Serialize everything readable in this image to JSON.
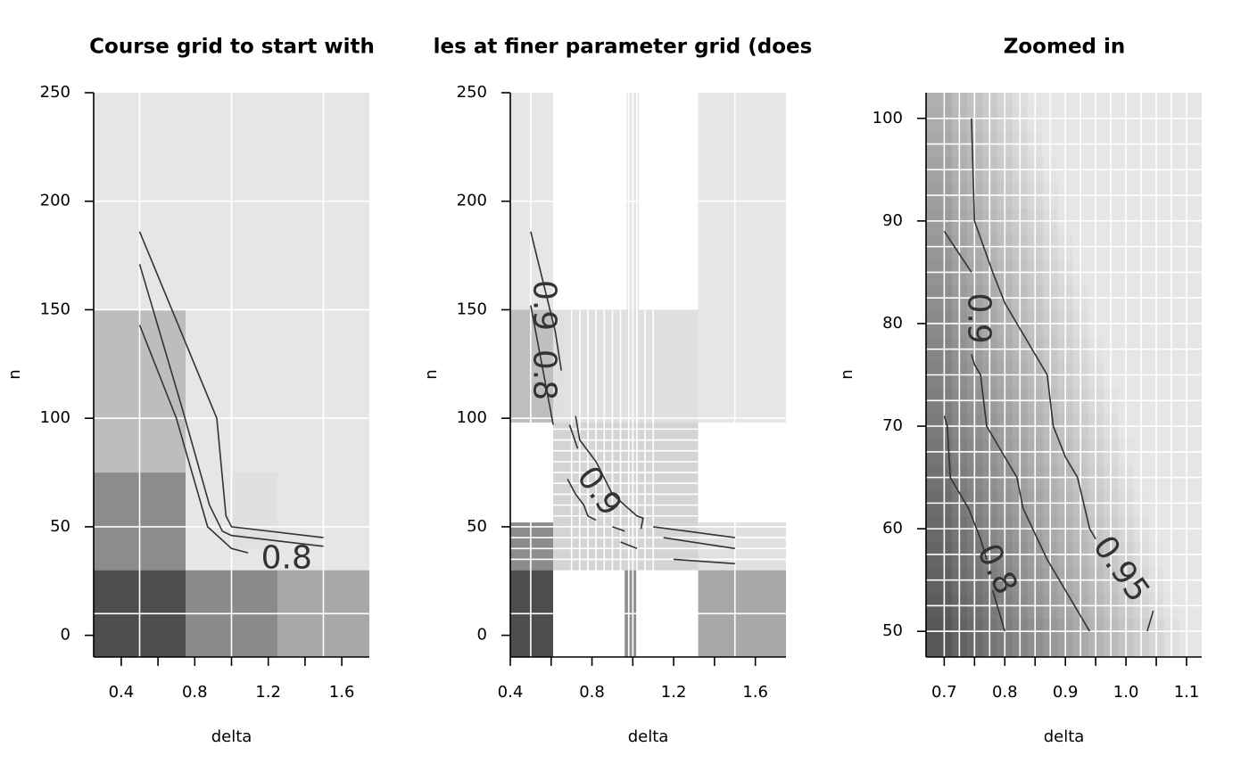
{
  "chart_data": [
    {
      "type": "heatmap",
      "title": "Course grid to start with",
      "xlabel": "delta",
      "ylabel": "n",
      "xlim": [
        0.25,
        1.75
      ],
      "ylim": [
        -10,
        250
      ],
      "xticks": [
        0.4,
        0.8,
        1.2,
        1.6
      ],
      "xticks_minor": [
        0.6,
        1.0,
        1.4
      ],
      "yticks": [
        0,
        50,
        100,
        150,
        200,
        250
      ],
      "grid_x": [
        0.5,
        1.0,
        1.5
      ],
      "grid_y": [
        10,
        50,
        100,
        150,
        200
      ],
      "cells": [
        {
          "x": [
            0.25,
            0.75
          ],
          "y": [
            -10,
            30
          ],
          "v": 0.3
        },
        {
          "x": [
            0.75,
            1.25
          ],
          "y": [
            -10,
            30
          ],
          "v": 0.54
        },
        {
          "x": [
            1.25,
            1.75
          ],
          "y": [
            -10,
            30
          ],
          "v": 0.66
        },
        {
          "x": [
            0.25,
            0.75
          ],
          "y": [
            30,
            75
          ],
          "v": 0.55
        },
        {
          "x": [
            0.75,
            1.75
          ],
          "y": [
            30,
            75
          ],
          "v": 0.9
        },
        {
          "x": [
            0.25,
            0.75
          ],
          "y": [
            75,
            150
          ],
          "v": 0.74
        },
        {
          "x": [
            0.75,
            1.75
          ],
          "y": [
            75,
            150
          ],
          "v": 0.9
        },
        {
          "x": [
            0.25,
            1.75
          ],
          "y": [
            150,
            250
          ],
          "v": 0.9
        },
        {
          "x": [
            1.0,
            1.25
          ],
          "y": [
            40,
            75
          ],
          "v": 0.88
        }
      ],
      "contours": [
        {
          "label": "0.8",
          "points": [
            [
              0.5,
              143
            ],
            [
              0.7,
              100
            ],
            [
              0.87,
              50
            ],
            [
              1.0,
              40
            ],
            [
              1.09,
              38
            ]
          ]
        },
        {
          "label": "",
          "points": [
            [
              0.5,
              171
            ],
            [
              0.73,
              105
            ],
            [
              0.88,
              60
            ],
            [
              0.95,
              48
            ],
            [
              1.0,
              46
            ],
            [
              1.5,
              41
            ]
          ]
        },
        {
          "label": "",
          "points": [
            [
              0.5,
              186
            ],
            [
              0.92,
              100
            ],
            [
              0.97,
              55
            ],
            [
              1.0,
              50
            ],
            [
              1.5,
              45
            ]
          ]
        }
      ],
      "contour_labels": [
        {
          "text": "0.8",
          "x": 1.3,
          "y": 35,
          "angle": 0
        }
      ]
    },
    {
      "type": "heatmap",
      "title": "les at finer parameter grid (does",
      "xlabel": "delta",
      "ylabel": "n",
      "xlim": [
        0.4,
        1.75
      ],
      "ylim": [
        -10,
        250
      ],
      "xticks": [
        0.4,
        0.8,
        1.2,
        1.6
      ],
      "xticks_minor": [
        0.6,
        1.0,
        1.4
      ],
      "yticks": [
        0,
        50,
        100,
        150,
        200,
        250
      ],
      "grid_x": [
        0.5,
        0.7,
        0.74,
        0.78,
        0.82,
        0.86,
        0.9,
        0.94,
        0.98,
        1.0,
        1.02,
        1.06,
        1.1,
        1.5
      ],
      "grid_y": [
        10,
        35,
        40,
        45,
        50,
        55,
        60,
        65,
        70,
        75,
        80,
        85,
        90,
        95,
        100,
        200
      ],
      "cells": [
        {
          "x": [
            0.4,
            0.61
          ],
          "y": [
            -10,
            30
          ],
          "v": 0.3
        },
        {
          "x": [
            0.4,
            0.61
          ],
          "y": [
            30,
            52
          ],
          "v": 0.55
        },
        {
          "x": [
            0.4,
            0.61
          ],
          "y": [
            52,
            98
          ],
          "v": 1.0
        },
        {
          "x": [
            0.4,
            0.61
          ],
          "y": [
            98,
            150
          ],
          "v": 0.75
        },
        {
          "x": [
            0.4,
            0.61
          ],
          "y": [
            150,
            250
          ],
          "v": 0.9
        },
        {
          "x": [
            0.61,
            1.32
          ],
          "y": [
            -10,
            30
          ],
          "v": 1.0
        },
        {
          "x": [
            0.96,
            1.02
          ],
          "y": [
            -10,
            30
          ],
          "v": 0.56
        },
        {
          "x": [
            0.61,
            1.32
          ],
          "y": [
            30,
            98
          ],
          "v": 0.83
        },
        {
          "x": [
            0.61,
            1.32
          ],
          "y": [
            98,
            150
          ],
          "v": 0.88
        },
        {
          "x": [
            0.61,
            1.32
          ],
          "y": [
            150,
            250
          ],
          "v": 1.0
        },
        {
          "x": [
            1.03,
            1.32
          ],
          "y": [
            150,
            250
          ],
          "v": 1.0
        },
        {
          "x": [
            0.97,
            1.03
          ],
          "y": [
            150,
            250
          ],
          "v": 0.9
        },
        {
          "x": [
            1.32,
            1.75
          ],
          "y": [
            -10,
            30
          ],
          "v": 0.66
        },
        {
          "x": [
            1.32,
            1.75
          ],
          "y": [
            30,
            52
          ],
          "v": 0.88
        },
        {
          "x": [
            1.32,
            1.75
          ],
          "y": [
            52,
            98
          ],
          "v": 1.0
        },
        {
          "x": [
            1.32,
            1.75
          ],
          "y": [
            98,
            250
          ],
          "v": 0.9
        }
      ],
      "contours": [
        {
          "label": "0.8",
          "points": [
            [
              0.5,
              186
            ],
            [
              0.62,
              140
            ],
            [
              0.65,
              122
            ]
          ]
        },
        {
          "label": "",
          "points": [
            [
              0.5,
              152
            ],
            [
              0.61,
              97
            ]
          ]
        },
        {
          "label": "",
          "points": [
            [
              0.69,
              97
            ],
            [
              0.73,
              86
            ]
          ]
        },
        {
          "label": "",
          "points": [
            [
              0.72,
              101
            ],
            [
              0.74,
              90
            ],
            [
              0.82,
              80
            ],
            [
              0.9,
              65
            ],
            [
              1.02,
              55
            ],
            [
              1.05,
              54
            ],
            [
              1.04,
              49
            ]
          ]
        },
        {
          "label": "",
          "points": [
            [
              0.68,
              72
            ],
            [
              0.72,
              65
            ],
            [
              0.76,
              60
            ],
            [
              0.78,
              55
            ],
            [
              0.82,
              53
            ]
          ]
        },
        {
          "label": "",
          "points": [
            [
              0.9,
              50
            ],
            [
              0.96,
              48
            ]
          ]
        },
        {
          "label": "",
          "points": [
            [
              0.94,
              43
            ],
            [
              1.02,
              40
            ]
          ]
        },
        {
          "label": "",
          "points": [
            [
              1.15,
              45
            ],
            [
              1.5,
              40
            ]
          ]
        },
        {
          "label": "",
          "points": [
            [
              1.1,
              50
            ],
            [
              1.5,
              45
            ]
          ]
        },
        {
          "label": "",
          "points": [
            [
              1.2,
              35
            ],
            [
              1.5,
              33
            ]
          ]
        }
      ],
      "contour_labels": [
        {
          "text": "0.9",
          "x": 0.56,
          "y": 152,
          "angle": 90
        },
        {
          "text": "0.8",
          "x": 0.56,
          "y": 120,
          "angle": 90
        },
        {
          "text": "0.9",
          "x": 0.83,
          "y": 66,
          "angle": 55
        }
      ]
    },
    {
      "type": "heatmap",
      "title": "Zoomed in",
      "xlabel": "delta",
      "ylabel": "n",
      "xlim": [
        0.67,
        1.125
      ],
      "ylim": [
        47.5,
        102.5
      ],
      "xticks": [
        0.7,
        0.8,
        0.9,
        1.0,
        1.1
      ],
      "xticks_minor": [
        0.75,
        0.85,
        0.95,
        1.05
      ],
      "yticks": [
        50,
        60,
        70,
        80,
        90,
        100
      ],
      "grid_x": [
        0.7,
        0.725,
        0.75,
        0.775,
        0.8,
        0.825,
        0.85,
        0.875,
        0.9,
        0.925,
        0.95,
        0.975,
        1.0,
        1.025,
        1.05,
        1.075,
        1.1
      ],
      "grid_y": [
        50,
        52.5,
        55,
        57.5,
        60,
        62.5,
        65,
        67.5,
        70,
        72.5,
        75,
        77.5,
        80,
        82.5,
        85,
        87.5,
        90,
        92.5,
        95,
        97.5,
        100
      ],
      "gradient": {
        "corner_low": 0.3,
        "corner_high": 0.9
      },
      "contours": [
        {
          "label": "0.8",
          "points": [
            [
              0.7,
              71
            ],
            [
              0.705,
              70
            ],
            [
              0.71,
              65
            ],
            [
              0.74,
              62
            ],
            [
              0.76,
              59
            ],
            [
              0.77,
              57
            ]
          ]
        },
        {
          "label": "",
          "points": [
            [
              0.78,
              54
            ],
            [
              0.8,
              50
            ]
          ]
        },
        {
          "label": "0.9",
          "points": [
            [
              0.7,
              89
            ],
            [
              0.745,
              85
            ]
          ]
        },
        {
          "label": "",
          "points": [
            [
              0.745,
              77
            ],
            [
              0.75,
              76
            ],
            [
              0.76,
              75
            ],
            [
              0.77,
              70
            ],
            [
              0.8,
              67
            ],
            [
              0.82,
              65
            ],
            [
              0.83,
              62
            ],
            [
              0.87,
              57
            ],
            [
              0.94,
              50
            ]
          ]
        },
        {
          "label": "0.95",
          "points": [
            [
              0.745,
              100
            ],
            [
              0.75,
              90
            ],
            [
              0.78,
              85
            ],
            [
              0.8,
              82
            ],
            [
              0.82,
              80
            ],
            [
              0.87,
              75
            ],
            [
              0.88,
              70
            ],
            [
              0.9,
              67
            ],
            [
              0.92,
              65
            ],
            [
              0.94,
              60
            ],
            [
              0.95,
              59
            ]
          ]
        },
        {
          "label": "",
          "points": [
            [
              1.035,
              50
            ],
            [
              1.045,
              52
            ]
          ]
        }
      ],
      "contour_labels": [
        {
          "text": "0.9",
          "x": 0.755,
          "y": 80.5,
          "angle": 90
        },
        {
          "text": "0.8",
          "x": 0.785,
          "y": 56,
          "angle": 65
        },
        {
          "text": "0.95",
          "x": 0.99,
          "y": 56,
          "angle": 55
        }
      ]
    }
  ]
}
